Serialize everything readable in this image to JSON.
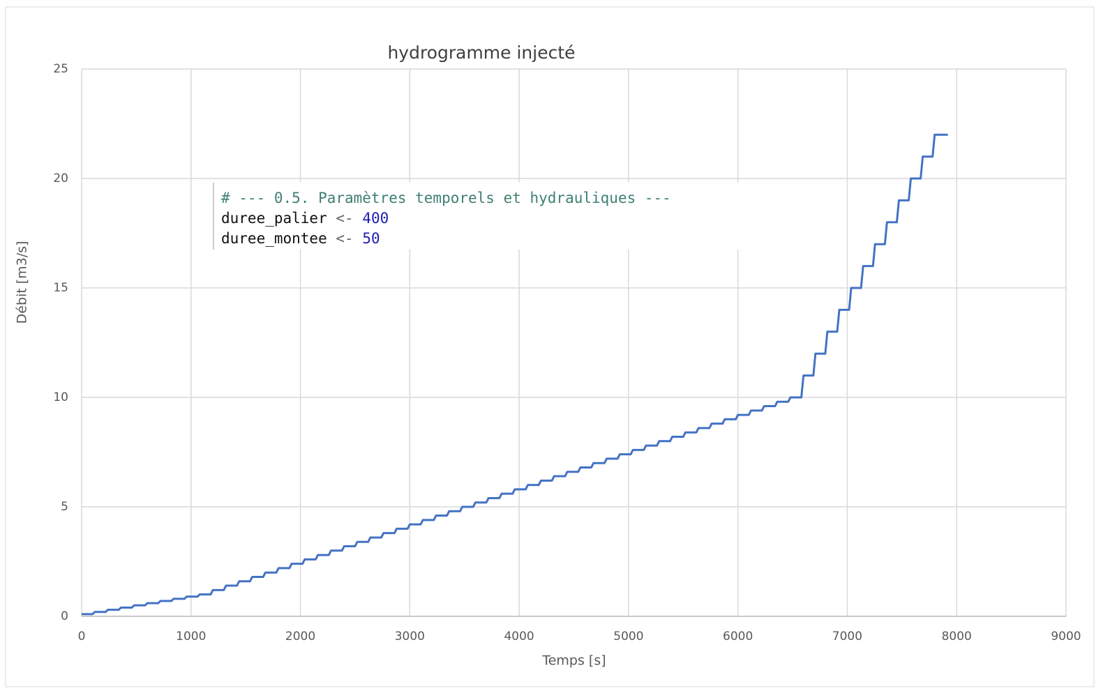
{
  "chart_data": {
    "type": "line",
    "title": "hydrogramme injecté",
    "xlabel": "Temps [s]",
    "ylabel": "Débit [m3/s]",
    "x": [
      0,
      100,
      120,
      220,
      240,
      340,
      360,
      460,
      480,
      580,
      600,
      700,
      720,
      820,
      840,
      940,
      960,
      1060,
      1080,
      1180,
      1200,
      1300,
      1320,
      1420,
      1440,
      1540,
      1560,
      1660,
      1680,
      1780,
      1800,
      1900,
      1920,
      2020,
      2040,
      2140,
      2160,
      2260,
      2280,
      2380,
      2400,
      2500,
      2520,
      2620,
      2640,
      2740,
      2760,
      2860,
      2880,
      2980,
      3000,
      3100,
      3120,
      3220,
      3240,
      3340,
      3360,
      3460,
      3480,
      3580,
      3600,
      3700,
      3720,
      3820,
      3840,
      3940,
      3960,
      4060,
      4080,
      4180,
      4200,
      4300,
      4320,
      4420,
      4440,
      4540,
      4560,
      4660,
      4680,
      4780,
      4800,
      4900,
      4920,
      5020,
      5040,
      5140,
      5160,
      5260,
      5280,
      5380,
      5400,
      5500,
      5520,
      5620,
      5640,
      5740,
      5760,
      5860,
      5880,
      5980,
      6000,
      6100,
      6120,
      6220,
      6240,
      6340,
      6360,
      6460,
      6480,
      6580,
      6600,
      6690,
      6709,
      6799,
      6818,
      6908,
      6927,
      7017,
      7036,
      7126,
      7145,
      7235,
      7254,
      7344,
      7363,
      7453,
      7472,
      7562,
      7581,
      7671,
      7690,
      7780,
      7799,
      7920
    ],
    "series": [
      {
        "name": "Débit",
        "color": "#4472c4",
        "values": [
          0.1,
          0.1,
          0.2,
          0.2,
          0.3,
          0.3,
          0.4,
          0.4,
          0.5,
          0.5,
          0.6,
          0.6,
          0.7,
          0.7,
          0.8,
          0.8,
          0.9,
          0.9,
          1,
          1,
          1.2,
          1.2,
          1.4,
          1.4,
          1.6,
          1.6,
          1.8,
          1.8,
          2,
          2,
          2.2,
          2.2,
          2.4,
          2.4,
          2.6,
          2.6,
          2.8,
          2.8,
          3,
          3,
          3.2,
          3.2,
          3.4,
          3.4,
          3.6,
          3.6,
          3.8,
          3.8,
          4,
          4,
          4.2,
          4.2,
          4.4,
          4.4,
          4.6,
          4.6,
          4.8,
          4.8,
          5,
          5,
          5.2,
          5.2,
          5.4,
          5.4,
          5.6,
          5.6,
          5.8,
          5.8,
          6,
          6,
          6.2,
          6.2,
          6.4,
          6.4,
          6.6,
          6.6,
          6.8,
          6.8,
          7,
          7,
          7.2,
          7.2,
          7.4,
          7.4,
          7.6,
          7.6,
          7.8,
          7.8,
          8,
          8,
          8.2,
          8.2,
          8.4,
          8.4,
          8.6,
          8.6,
          8.8,
          8.8,
          9,
          9,
          9.2,
          9.2,
          9.4,
          9.4,
          9.6,
          9.6,
          9.8,
          9.8,
          10,
          10,
          11,
          11,
          12,
          12,
          13,
          13,
          14,
          14,
          15,
          15,
          16,
          16,
          17,
          17,
          18,
          18,
          19,
          19,
          20,
          20,
          21,
          21,
          22,
          22
        ]
      }
    ],
    "xlim": [
      0,
      9000
    ],
    "xticks": [
      0,
      1000,
      2000,
      3000,
      4000,
      5000,
      6000,
      7000,
      8000,
      9000
    ],
    "ylim": [
      0,
      25
    ],
    "yticks": [
      0,
      5,
      10,
      15,
      20,
      25
    ],
    "grid": true
  },
  "code_overlay": {
    "comment": "# --- 0.5. Paramètres temporels et hydrauliques ---",
    "lines": [
      {
        "name": "duree_palier",
        "op": "<-",
        "value": 400
      },
      {
        "name": "duree_montee",
        "op": "<-",
        "value": 50
      }
    ]
  }
}
